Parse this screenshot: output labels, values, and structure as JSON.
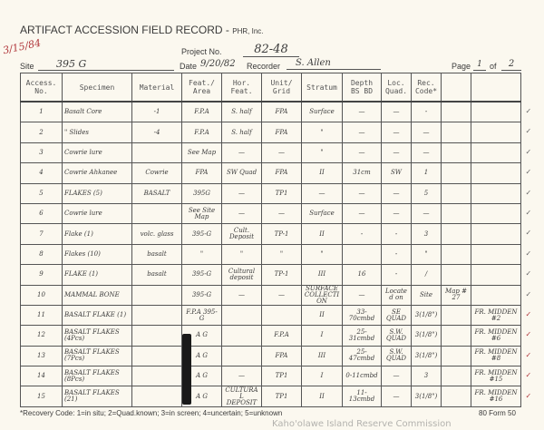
{
  "form": {
    "title": "ARTIFACT ACCESSION FIELD RECORD -",
    "org": "PHR, Inc.",
    "margin_date": "3/15/84",
    "project_label": "Project No.",
    "project_no": "82-48",
    "site_label": "Site",
    "site": "395 G",
    "date_label": "Date",
    "date": "9/20/82",
    "recorder_label": "Recorder",
    "recorder": "S. Allen",
    "page_label": "Page",
    "page": "1",
    "of_label": "of",
    "pages": "2"
  },
  "table": {
    "headers": [
      "Access. No.",
      "Specimen",
      "Material",
      "Feat./ Area",
      "Hor. Feat.",
      "Unit/ Grid",
      "Stratum",
      "Depth BS BD",
      "Loc. Quad.",
      "Rec. Code*",
      "",
      ""
    ],
    "rows": [
      [
        "1",
        "Basalt Core",
        "-1",
        "F.P.A",
        "S. half",
        "FPA",
        "Surface",
        "—",
        "—",
        "-",
        "",
        ""
      ],
      [
        "2",
        "\" Slides",
        "-4",
        "F.P.A",
        "S. half",
        "FPA",
        "\"",
        "—",
        "—",
        "—",
        "",
        ""
      ],
      [
        "3",
        "Cowrie lure",
        "",
        "See Map",
        "—",
        "—",
        "\"",
        "—",
        "—",
        "—",
        "",
        ""
      ],
      [
        "4",
        "Cowrie Ahkanee",
        "Cowrie",
        "FPA",
        "SW Quad",
        "FPA",
        "II",
        "31cm",
        "SW",
        "1",
        "",
        ""
      ],
      [
        "5",
        "FLAKES (5)",
        "BASALT",
        "395G",
        "—",
        "TP1",
        "—",
        "—",
        "—",
        "5",
        "",
        ""
      ],
      [
        "6",
        "Cowrie lure",
        "",
        "See Site Map",
        "—",
        "—",
        "Surface",
        "—",
        "—",
        "—",
        "",
        ""
      ],
      [
        "7",
        "Flake (1)",
        "volc. glass",
        "395-G",
        "Cult. Deposit",
        "TP-1",
        "II",
        "-",
        "-",
        "3",
        "",
        ""
      ],
      [
        "8",
        "Flakes (10)",
        "basalt",
        "\"",
        "\"",
        "\"",
        "\"",
        "",
        "-",
        "\"",
        "",
        ""
      ],
      [
        "9",
        "FLAKE (1)",
        "basalt",
        "395-G",
        "Cultural deposit",
        "TP-1",
        "III",
        "16",
        "-",
        "/",
        "",
        ""
      ],
      [
        "10",
        "MAMMAL BONE",
        "",
        "395-G",
        "—",
        "—",
        "SURFACE COLLECTION",
        "—",
        "Located on",
        "Site",
        "Map # 27",
        ""
      ],
      [
        "11",
        "BASALT FLAKE (1)",
        "",
        "F.P.A 395-G",
        "",
        "",
        "II",
        "33-70cmbd",
        "SE QUAD",
        "3(1/8\")",
        "",
        "FR. MIDDEN #2"
      ],
      [
        "12",
        "BASALT FLAKES (4Pcs)",
        "",
        "A G",
        "",
        "F.P.A",
        "I",
        "25-31cmbd",
        "S.W. QUAD",
        "3(1/8\")",
        "",
        "FR. MIDDEN #6"
      ],
      [
        "13",
        "BASALT FLAKES (7Pcs)",
        "",
        "A G",
        "",
        "FPA",
        "III",
        "25-47cmbd",
        "S.W. QUAD",
        "3(1/8\")",
        "",
        "FR. MIDDEN #8"
      ],
      [
        "14",
        "BASALT FLAKES (8Pcs)",
        "",
        "A G",
        "—",
        "TP1",
        "I",
        "0-11cmbd",
        "—",
        "3",
        "",
        "FR. MIDDEN #15"
      ],
      [
        "15",
        "BASALT FLAKES (21)",
        "",
        "A G",
        "CULTURAL DEPOSIT",
        "TP1",
        "II",
        "11-13cmbd",
        "—",
        "3(1/8\")",
        "",
        "FR. MIDDEN #16"
      ]
    ]
  },
  "footer": {
    "recovery_code": "*Recovery Code: 1=in situ; 2=Quad.known; 3=in screen; 4=uncertain; 5=unknown",
    "form_no": "80  Form 50",
    "watermark": "Kaho'olawe Island Reserve Commission"
  }
}
